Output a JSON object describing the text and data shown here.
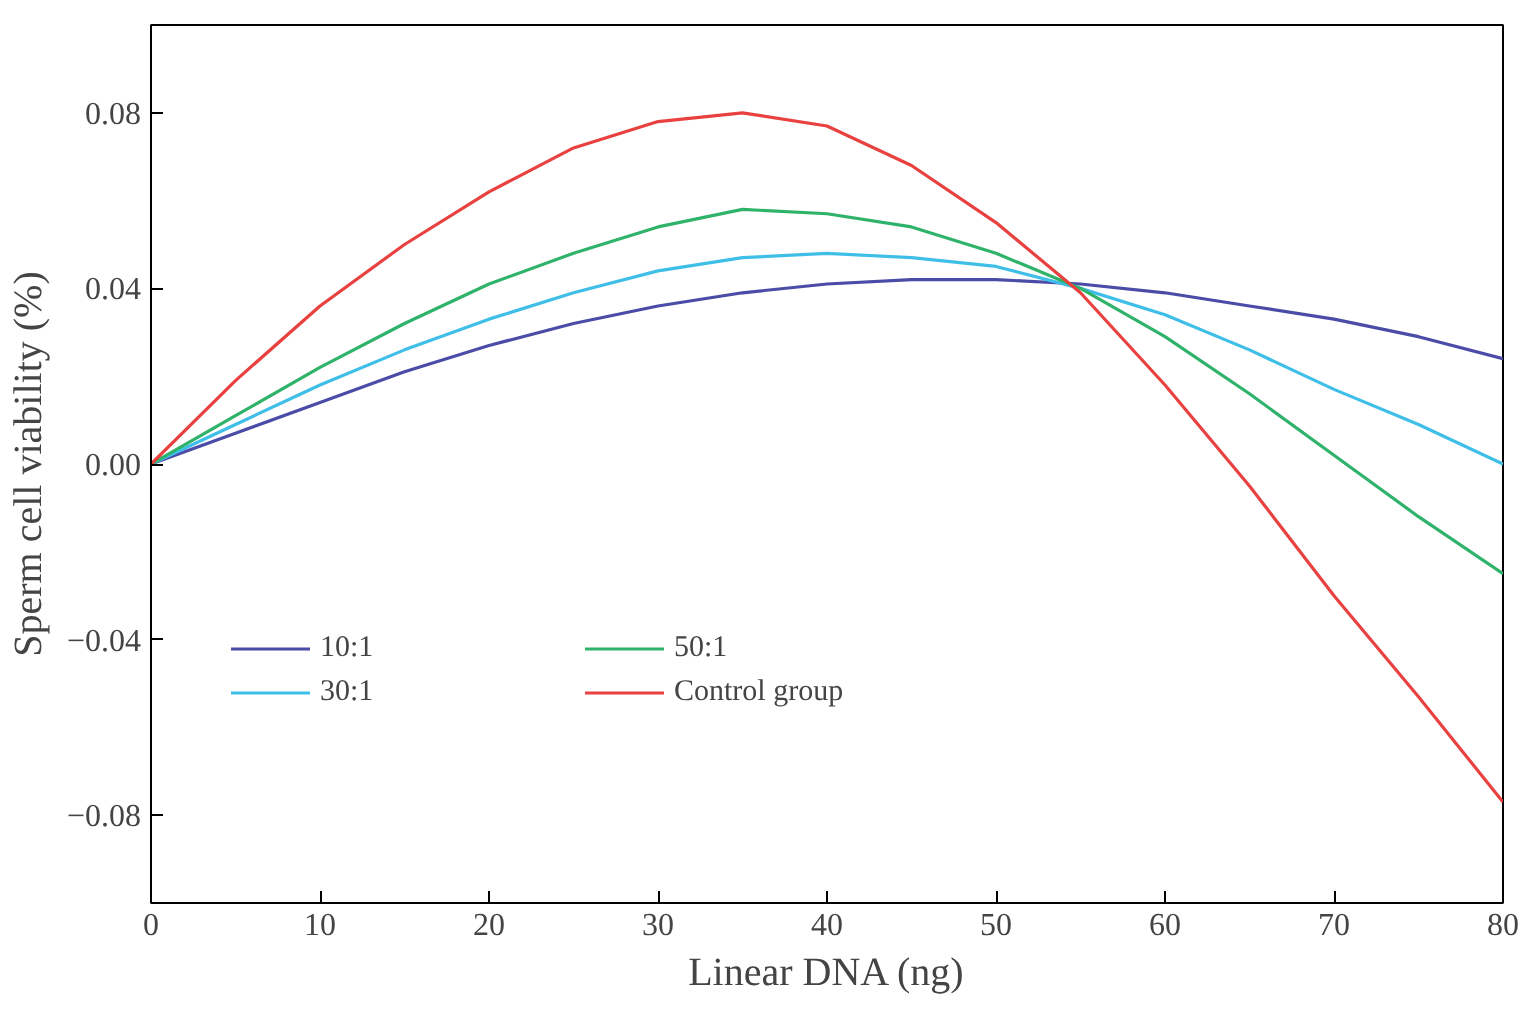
{
  "chart_data": {
    "type": "line",
    "xlabel": "Linear DNA (ng)",
    "ylabel": "Sperm cell viability (%)",
    "x": [
      0,
      5,
      10,
      15,
      20,
      25,
      30,
      35,
      40,
      45,
      50,
      55,
      60,
      65,
      70,
      75,
      80
    ],
    "series": [
      {
        "name": "10:1",
        "color": "#4b4ba8",
        "values": [
          0,
          0.007,
          0.014,
          0.021,
          0.027,
          0.032,
          0.036,
          0.039,
          0.041,
          0.042,
          0.042,
          0.041,
          0.039,
          0.036,
          0.033,
          0.029,
          0.024
        ]
      },
      {
        "name": "30:1",
        "color": "#3fbfe8",
        "values": [
          0,
          0.009,
          0.018,
          0.026,
          0.033,
          0.039,
          0.044,
          0.047,
          0.048,
          0.047,
          0.045,
          0.04,
          0.034,
          0.026,
          0.017,
          0.009,
          0.0
        ]
      },
      {
        "name": "50:1",
        "color": "#2fb36a",
        "values": [
          0,
          0.011,
          0.022,
          0.032,
          0.041,
          0.048,
          0.054,
          0.058,
          0.057,
          0.054,
          0.048,
          0.04,
          0.029,
          0.016,
          0.002,
          -0.012,
          -0.025
        ]
      },
      {
        "name": "Control group",
        "color": "#e8413f",
        "values": [
          0,
          0.019,
          0.036,
          0.05,
          0.062,
          0.072,
          0.078,
          0.08,
          0.077,
          0.068,
          0.055,
          0.039,
          0.018,
          -0.005,
          -0.03,
          -0.053,
          -0.077
        ]
      }
    ],
    "xlim": [
      0,
      80
    ],
    "xticks": [
      0,
      10,
      20,
      30,
      40,
      50,
      60,
      70,
      80
    ],
    "ylim": [
      -0.1,
      0.1
    ],
    "yticks": [
      {
        "value": -0.08,
        "label": "−0.08"
      },
      {
        "value": -0.04,
        "label": "−0.04"
      },
      {
        "value": 0,
        "label": "0.00"
      },
      {
        "value": 0.04,
        "label": "0.04"
      },
      {
        "value": 0.08,
        "label": "0.08"
      }
    ],
    "legend": "left",
    "grid": false,
    "line_style": "solid"
  }
}
